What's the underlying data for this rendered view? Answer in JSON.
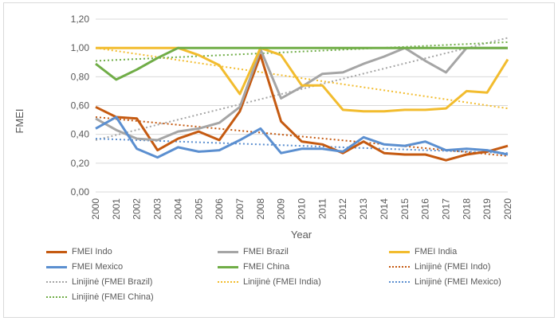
{
  "chart_data": {
    "type": "line",
    "ylabel": "FMEI",
    "xlabel": "Year",
    "ylim": [
      0,
      1.2
    ],
    "yticks": [
      "0,00",
      "0,20",
      "0,40",
      "0,60",
      "0,80",
      "1,00",
      "1,20"
    ],
    "ytick_values": [
      0,
      0.2,
      0.4,
      0.6,
      0.8,
      1.0,
      1.2
    ],
    "categories": [
      "2000",
      "2001",
      "2002",
      "2003",
      "2004",
      "2005",
      "2006",
      "2007",
      "2008",
      "2009",
      "2010",
      "2011",
      "2012",
      "2013",
      "2014",
      "2015",
      "2016",
      "2017",
      "2018",
      "2019",
      "2020"
    ],
    "grid": true,
    "series": [
      {
        "name": "FMEI Indo",
        "color": "#C55A11",
        "values": [
          0.59,
          0.52,
          0.51,
          0.29,
          0.37,
          0.42,
          0.36,
          0.56,
          0.95,
          0.49,
          0.35,
          0.33,
          0.27,
          0.35,
          0.27,
          0.26,
          0.26,
          0.22,
          0.26,
          0.28,
          0.32
        ]
      },
      {
        "name": "FMEI Brazil",
        "color": "#A5A5A5",
        "values": [
          0.51,
          0.43,
          0.37,
          0.36,
          0.42,
          0.44,
          0.48,
          0.59,
          0.99,
          0.65,
          0.73,
          0.82,
          0.83,
          0.89,
          0.94,
          1.0,
          0.91,
          0.83,
          1.0,
          1.0,
          1.0
        ]
      },
      {
        "name": "FMEI India",
        "color": "#F2BC2E",
        "values": [
          1.0,
          1.0,
          1.0,
          1.0,
          1.0,
          0.95,
          0.88,
          0.68,
          1.0,
          0.95,
          0.74,
          0.74,
          0.57,
          0.56,
          0.56,
          0.57,
          0.57,
          0.58,
          0.7,
          0.69,
          0.92
        ]
      },
      {
        "name": "FMEI Mexico",
        "color": "#5B8FD0",
        "values": [
          0.44,
          0.52,
          0.3,
          0.24,
          0.31,
          0.28,
          0.29,
          0.36,
          0.44,
          0.27,
          0.3,
          0.3,
          0.28,
          0.38,
          0.33,
          0.32,
          0.35,
          0.29,
          0.3,
          0.29,
          0.26
        ]
      },
      {
        "name": "FMEI China",
        "color": "#70AD47",
        "values": [
          0.89,
          0.78,
          0.85,
          0.93,
          1.0,
          1.0,
          1.0,
          1.0,
          1.0,
          1.0,
          1.0,
          1.0,
          1.0,
          1.0,
          1.0,
          1.0,
          1.0,
          1.0,
          1.0,
          1.0,
          1.0
        ]
      }
    ],
    "trendlines": [
      {
        "name": "Linijinė (FMEI Indo)",
        "color": "#C55A11",
        "start": 0.52,
        "end": 0.25
      },
      {
        "name": "Linijinė (FMEI Brazil)",
        "color": "#A5A5A5",
        "start": 0.36,
        "end": 1.07
      },
      {
        "name": "Linijinė (FMEI India)",
        "color": "#F2BC2E",
        "start": 1.0,
        "end": 0.58
      },
      {
        "name": "Linijinė (FMEI Mexico)",
        "color": "#5B8FD0",
        "start": 0.37,
        "end": 0.27
      },
      {
        "name": "Linijinė (FMEI China)",
        "color": "#70AD47",
        "start": 0.91,
        "end": 1.04
      }
    ],
    "legend_position": "bottom"
  }
}
